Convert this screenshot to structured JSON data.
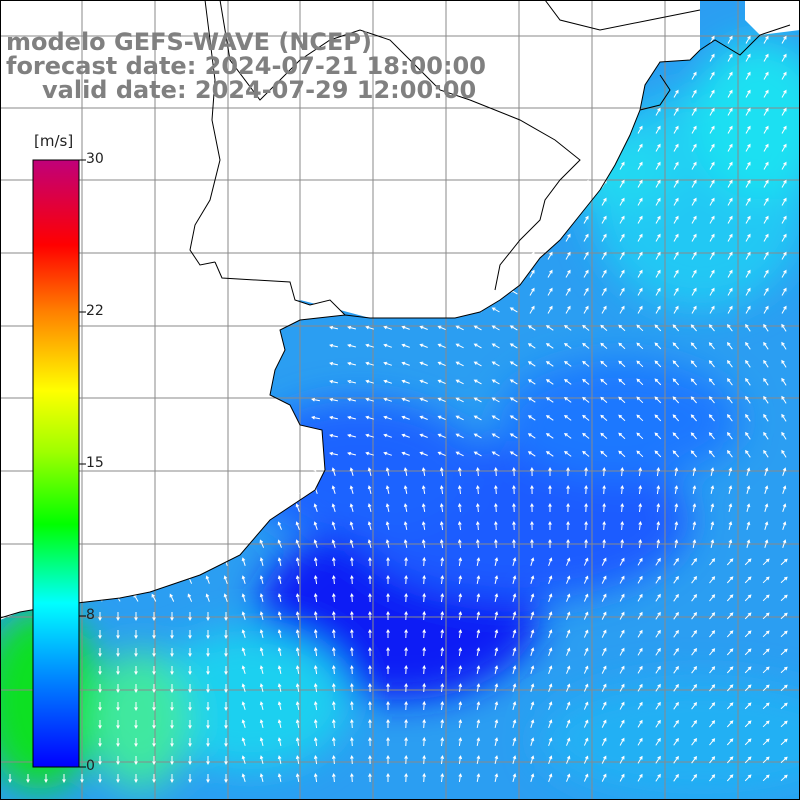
{
  "title": {
    "line1": "modelo GEFS-WAVE (NCEP)",
    "line2": "forecast date: 2024-07-21 18:00:00",
    "line3": "valid date: 2024-07-29 12:00:00"
  },
  "colorbar": {
    "unit": "[m/s]",
    "ticks": [
      "30",
      "22",
      "15",
      "8",
      "0"
    ],
    "tick_values": [
      30,
      22,
      15,
      8,
      0
    ],
    "range": [
      0,
      30
    ],
    "colors": [
      "#0000ff",
      "#0090ff",
      "#00ffff",
      "#00ff00",
      "#ffff00",
      "#ff8000",
      "#ff0000",
      "#c00080"
    ]
  },
  "map": {
    "land_color": "#ffffff",
    "coast_color": "#000000",
    "grid": true,
    "field_colors": {
      "min": "#0a1ef5",
      "low": "#1e64ff",
      "mid": "#2ba5f5",
      "high": "#1fdcf2",
      "green": "#1ee61e"
    }
  }
}
